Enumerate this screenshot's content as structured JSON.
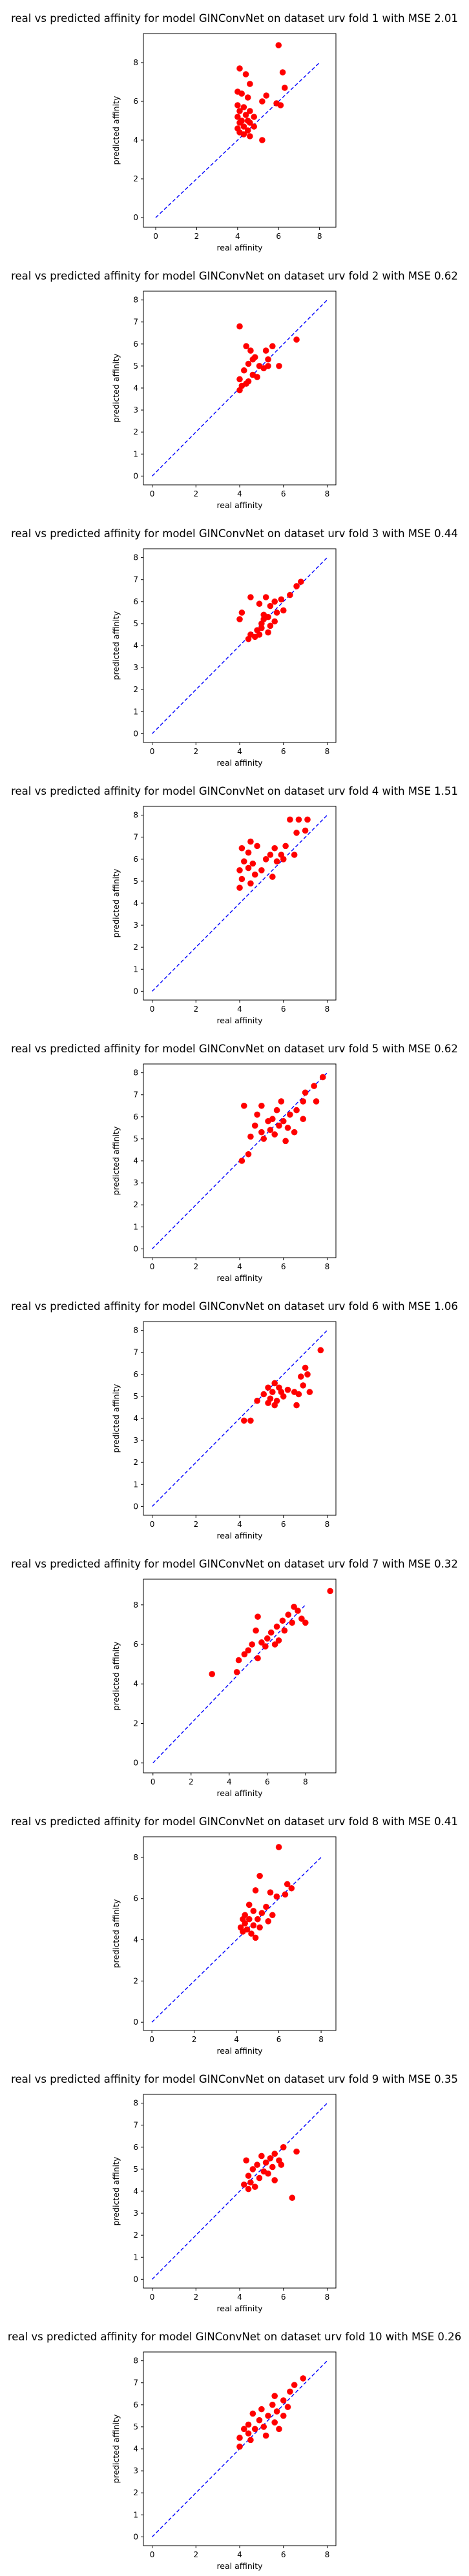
{
  "colors": {
    "points": "#ff0000",
    "diagonal": "#0000ff",
    "axes": "#000000",
    "background": "#ffffff"
  },
  "chart_data": [
    {
      "type": "scatter",
      "title": "real vs predicted affinity for model GINConvNet on dataset urv fold 1 with MSE 2.01",
      "xlabel": "real affinity",
      "ylabel": "predicted affinity",
      "xlim": [
        -0.6,
        8.8
      ],
      "ylim": [
        -0.5,
        9.5
      ],
      "xticks": [
        0,
        2,
        4,
        6,
        8
      ],
      "yticks": [
        0,
        2,
        4,
        6,
        8
      ],
      "diagonal": [
        0,
        8
      ],
      "points": [
        [
          6.0,
          8.9
        ],
        [
          4.1,
          7.7
        ],
        [
          6.2,
          7.5
        ],
        [
          4.4,
          7.4
        ],
        [
          4.6,
          6.9
        ],
        [
          6.3,
          6.7
        ],
        [
          4.0,
          6.5
        ],
        [
          4.2,
          6.4
        ],
        [
          5.4,
          6.3
        ],
        [
          4.5,
          6.2
        ],
        [
          5.2,
          6.0
        ],
        [
          5.9,
          5.9
        ],
        [
          4.0,
          5.8
        ],
        [
          4.3,
          5.7
        ],
        [
          4.6,
          5.5
        ],
        [
          4.1,
          5.5
        ],
        [
          4.4,
          5.3
        ],
        [
          4.0,
          5.2
        ],
        [
          4.8,
          5.2
        ],
        [
          4.2,
          5.0
        ],
        [
          4.5,
          5.0
        ],
        [
          4.1,
          4.9
        ],
        [
          4.6,
          4.9
        ],
        [
          4.3,
          4.7
        ],
        [
          4.0,
          4.6
        ],
        [
          4.8,
          4.7
        ],
        [
          4.5,
          4.5
        ],
        [
          4.1,
          4.4
        ],
        [
          4.3,
          4.3
        ],
        [
          4.6,
          4.2
        ],
        [
          5.2,
          4.0
        ],
        [
          6.1,
          5.8
        ]
      ]
    },
    {
      "type": "scatter",
      "title": "real vs predicted affinity for model GINConvNet on dataset urv fold 2 with MSE 0.62",
      "xlabel": "real affinity",
      "ylabel": "predicted affinity",
      "xlim": [
        -0.4,
        8.4
      ],
      "ylim": [
        -0.4,
        8.4
      ],
      "xticks": [
        0,
        2,
        4,
        6,
        8
      ],
      "yticks": [
        0,
        1,
        2,
        3,
        4,
        5,
        6,
        7,
        8
      ],
      "diagonal": [
        0,
        8
      ],
      "points": [
        [
          4.0,
          6.8
        ],
        [
          4.5,
          5.7
        ],
        [
          4.3,
          5.9
        ],
        [
          5.2,
          5.7
        ],
        [
          5.5,
          5.9
        ],
        [
          5.3,
          5.3
        ],
        [
          4.7,
          5.4
        ],
        [
          4.4,
          5.1
        ],
        [
          4.9,
          5.0
        ],
        [
          6.6,
          6.2
        ],
        [
          5.8,
          5.0
        ],
        [
          4.2,
          4.8
        ],
        [
          4.6,
          4.6
        ],
        [
          5.1,
          4.9
        ],
        [
          4.0,
          4.4
        ],
        [
          4.4,
          4.3
        ],
        [
          4.8,
          4.5
        ],
        [
          4.1,
          4.1
        ],
        [
          4.3,
          4.2
        ],
        [
          4.0,
          3.9
        ],
        [
          5.3,
          5.0
        ],
        [
          4.6,
          5.3
        ]
      ]
    },
    {
      "type": "scatter",
      "title": "real vs predicted affinity for model GINConvNet on dataset urv fold 3 with MSE 0.44",
      "xlabel": "real affinity",
      "ylabel": "predicted affinity",
      "xlim": [
        -0.4,
        8.4
      ],
      "ylim": [
        -0.4,
        8.4
      ],
      "xticks": [
        0,
        2,
        4,
        6,
        8
      ],
      "yticks": [
        0,
        1,
        2,
        3,
        4,
        5,
        6,
        7,
        8
      ],
      "diagonal": [
        0,
        8
      ],
      "points": [
        [
          6.8,
          6.9
        ],
        [
          6.6,
          6.7
        ],
        [
          4.5,
          6.2
        ],
        [
          5.2,
          6.2
        ],
        [
          5.6,
          6.0
        ],
        [
          5.9,
          6.1
        ],
        [
          6.3,
          6.3
        ],
        [
          4.9,
          5.9
        ],
        [
          5.4,
          5.8
        ],
        [
          4.1,
          5.5
        ],
        [
          5.7,
          5.5
        ],
        [
          6.0,
          5.6
        ],
        [
          4.0,
          5.2
        ],
        [
          5.1,
          5.4
        ],
        [
          5.3,
          5.3
        ],
        [
          5.6,
          5.1
        ],
        [
          5.0,
          5.0
        ],
        [
          5.4,
          4.9
        ],
        [
          4.8,
          4.7
        ],
        [
          5.3,
          4.6
        ],
        [
          4.5,
          4.5
        ],
        [
          4.9,
          4.5
        ],
        [
          4.4,
          4.3
        ],
        [
          4.7,
          4.4
        ],
        [
          5.1,
          5.2
        ],
        [
          5.0,
          4.8
        ]
      ]
    },
    {
      "type": "scatter",
      "title": "real vs predicted affinity for model GINConvNet on dataset urv fold 4 with MSE 1.51",
      "xlabel": "real affinity",
      "ylabel": "predicted affinity",
      "xlim": [
        -0.4,
        8.4
      ],
      "ylim": [
        -0.4,
        8.4
      ],
      "xticks": [
        0,
        2,
        4,
        6,
        8
      ],
      "yticks": [
        0,
        1,
        2,
        3,
        4,
        5,
        6,
        7,
        8
      ],
      "diagonal": [
        0,
        8
      ],
      "points": [
        [
          6.3,
          7.8
        ],
        [
          6.7,
          7.8
        ],
        [
          7.1,
          7.8
        ],
        [
          6.6,
          7.2
        ],
        [
          7.0,
          7.3
        ],
        [
          4.5,
          6.8
        ],
        [
          4.1,
          6.5
        ],
        [
          4.4,
          6.3
        ],
        [
          4.8,
          6.6
        ],
        [
          5.6,
          6.5
        ],
        [
          6.1,
          6.6
        ],
        [
          5.4,
          6.2
        ],
        [
          5.9,
          6.2
        ],
        [
          6.5,
          6.2
        ],
        [
          4.2,
          5.9
        ],
        [
          4.6,
          5.8
        ],
        [
          5.2,
          6.0
        ],
        [
          5.7,
          5.9
        ],
        [
          6.0,
          6.0
        ],
        [
          4.0,
          5.5
        ],
        [
          4.4,
          5.6
        ],
        [
          5.0,
          5.5
        ],
        [
          4.7,
          5.3
        ],
        [
          4.1,
          5.1
        ],
        [
          4.5,
          4.9
        ],
        [
          5.5,
          5.2
        ],
        [
          4.0,
          4.7
        ]
      ]
    },
    {
      "type": "scatter",
      "title": "real vs predicted affinity for model GINConvNet on dataset urv fold 5 with MSE 0.62",
      "xlabel": "real affinity",
      "ylabel": "predicted affinity",
      "xlim": [
        -0.4,
        8.4
      ],
      "ylim": [
        -0.4,
        8.4
      ],
      "xticks": [
        0,
        2,
        4,
        6,
        8
      ],
      "yticks": [
        0,
        1,
        2,
        3,
        4,
        5,
        6,
        7,
        8
      ],
      "diagonal": [
        0,
        8
      ],
      "points": [
        [
          7.8,
          7.8
        ],
        [
          7.4,
          7.4
        ],
        [
          7.0,
          7.1
        ],
        [
          6.9,
          6.7
        ],
        [
          7.5,
          6.7
        ],
        [
          5.9,
          6.7
        ],
        [
          4.2,
          6.5
        ],
        [
          5.0,
          6.5
        ],
        [
          6.6,
          6.3
        ],
        [
          5.7,
          6.3
        ],
        [
          4.8,
          6.1
        ],
        [
          6.3,
          6.1
        ],
        [
          5.5,
          5.9
        ],
        [
          6.0,
          5.8
        ],
        [
          5.3,
          5.8
        ],
        [
          6.9,
          5.9
        ],
        [
          4.7,
          5.6
        ],
        [
          5.8,
          5.6
        ],
        [
          6.2,
          5.5
        ],
        [
          5.4,
          5.4
        ],
        [
          5.0,
          5.3
        ],
        [
          6.5,
          5.3
        ],
        [
          4.5,
          5.1
        ],
        [
          5.6,
          5.2
        ],
        [
          5.1,
          5.0
        ],
        [
          6.1,
          4.9
        ],
        [
          4.4,
          4.3
        ],
        [
          4.1,
          4.0
        ]
      ]
    },
    {
      "type": "scatter",
      "title": "real vs predicted affinity for model GINConvNet on dataset urv fold 6 with MSE 1.06",
      "xlabel": "real affinity",
      "ylabel": "predicted affinity",
      "xlim": [
        -0.4,
        8.4
      ],
      "ylim": [
        -0.4,
        8.4
      ],
      "xticks": [
        0,
        2,
        4,
        6,
        8
      ],
      "yticks": [
        0,
        1,
        2,
        3,
        4,
        5,
        6,
        7,
        8
      ],
      "diagonal": [
        0,
        8
      ],
      "points": [
        [
          7.7,
          7.1
        ],
        [
          7.0,
          6.3
        ],
        [
          7.1,
          6.0
        ],
        [
          6.8,
          5.9
        ],
        [
          5.6,
          5.6
        ],
        [
          5.3,
          5.4
        ],
        [
          5.8,
          5.4
        ],
        [
          6.9,
          5.5
        ],
        [
          5.5,
          5.2
        ],
        [
          5.9,
          5.2
        ],
        [
          6.2,
          5.3
        ],
        [
          6.5,
          5.2
        ],
        [
          5.1,
          5.1
        ],
        [
          7.2,
          5.2
        ],
        [
          5.4,
          4.9
        ],
        [
          6.0,
          5.0
        ],
        [
          6.7,
          5.1
        ],
        [
          5.7,
          4.8
        ],
        [
          5.3,
          4.7
        ],
        [
          4.8,
          4.8
        ],
        [
          6.6,
          4.6
        ],
        [
          5.6,
          4.6
        ],
        [
          4.2,
          3.9
        ],
        [
          4.5,
          3.9
        ]
      ]
    },
    {
      "type": "scatter",
      "title": "real vs predicted affinity for model GINConvNet on dataset urv fold 7 with MSE 0.32",
      "xlabel": "real affinity",
      "ylabel": "predicted affinity",
      "xlim": [
        -0.5,
        9.6
      ],
      "ylim": [
        -0.5,
        9.3
      ],
      "xticks": [
        0,
        2,
        4,
        6,
        8
      ],
      "yticks": [
        0,
        2,
        4,
        6,
        8
      ],
      "diagonal": [
        0,
        8
      ],
      "points": [
        [
          9.3,
          8.7
        ],
        [
          7.4,
          7.9
        ],
        [
          7.6,
          7.7
        ],
        [
          7.1,
          7.5
        ],
        [
          7.8,
          7.3
        ],
        [
          5.5,
          7.4
        ],
        [
          6.8,
          7.2
        ],
        [
          7.3,
          7.1
        ],
        [
          8.0,
          7.1
        ],
        [
          6.5,
          6.9
        ],
        [
          6.9,
          6.7
        ],
        [
          6.2,
          6.6
        ],
        [
          6.0,
          6.3
        ],
        [
          5.7,
          6.1
        ],
        [
          6.4,
          6.0
        ],
        [
          5.2,
          6.0
        ],
        [
          5.9,
          5.9
        ],
        [
          5.0,
          5.7
        ],
        [
          4.8,
          5.5
        ],
        [
          5.5,
          5.3
        ],
        [
          4.5,
          5.2
        ],
        [
          4.4,
          4.6
        ],
        [
          3.1,
          4.5
        ],
        [
          5.4,
          6.7
        ],
        [
          6.6,
          6.2
        ]
      ]
    },
    {
      "type": "scatter",
      "title": "real vs predicted affinity for model GINConvNet on dataset urv fold 8 with MSE 0.41",
      "xlabel": "real affinity",
      "ylabel": "predicted affinity",
      "xlim": [
        -0.4,
        8.7
      ],
      "ylim": [
        -0.4,
        9.0
      ],
      "xticks": [
        0,
        2,
        4,
        6,
        8
      ],
      "yticks": [
        0,
        2,
        4,
        6,
        8
      ],
      "diagonal": [
        0,
        8
      ],
      "points": [
        [
          6.0,
          8.5
        ],
        [
          5.1,
          7.1
        ],
        [
          6.4,
          6.7
        ],
        [
          6.6,
          6.5
        ],
        [
          4.9,
          6.4
        ],
        [
          5.6,
          6.3
        ],
        [
          6.3,
          6.2
        ],
        [
          5.9,
          6.1
        ],
        [
          4.6,
          5.7
        ],
        [
          5.4,
          5.6
        ],
        [
          4.8,
          5.4
        ],
        [
          5.2,
          5.3
        ],
        [
          4.4,
          5.2
        ],
        [
          5.7,
          5.2
        ],
        [
          4.3,
          5.0
        ],
        [
          4.6,
          5.0
        ],
        [
          5.0,
          5.0
        ],
        [
          5.5,
          4.9
        ],
        [
          4.4,
          4.8
        ],
        [
          4.8,
          4.7
        ],
        [
          4.2,
          4.6
        ],
        [
          4.5,
          4.5
        ],
        [
          5.1,
          4.6
        ],
        [
          4.7,
          4.3
        ],
        [
          4.3,
          4.4
        ],
        [
          4.9,
          4.1
        ]
      ]
    },
    {
      "type": "scatter",
      "title": "real vs predicted affinity for model GINConvNet on dataset urv fold 9 with MSE 0.35",
      "xlabel": "real affinity",
      "ylabel": "predicted affinity",
      "xlim": [
        -0.4,
        8.4
      ],
      "ylim": [
        -0.4,
        8.4
      ],
      "xticks": [
        0,
        2,
        4,
        6,
        8
      ],
      "yticks": [
        0,
        1,
        2,
        3,
        4,
        5,
        6,
        7,
        8
      ],
      "diagonal": [
        0,
        8
      ],
      "points": [
        [
          6.0,
          6.0
        ],
        [
          6.6,
          5.8
        ],
        [
          5.6,
          5.7
        ],
        [
          5.0,
          5.6
        ],
        [
          5.4,
          5.5
        ],
        [
          4.3,
          5.4
        ],
        [
          5.2,
          5.3
        ],
        [
          5.8,
          5.4
        ],
        [
          4.8,
          5.2
        ],
        [
          5.5,
          5.1
        ],
        [
          5.9,
          5.2
        ],
        [
          4.6,
          5.0
        ],
        [
          5.1,
          4.9
        ],
        [
          5.3,
          4.8
        ],
        [
          4.4,
          4.7
        ],
        [
          4.9,
          4.6
        ],
        [
          5.6,
          4.5
        ],
        [
          4.5,
          4.4
        ],
        [
          4.2,
          4.3
        ],
        [
          4.7,
          4.2
        ],
        [
          4.4,
          4.1
        ],
        [
          6.4,
          3.7
        ]
      ]
    },
    {
      "type": "scatter",
      "title": "real vs predicted affinity for model GINConvNet on dataset urv fold 10 with MSE 0.26",
      "xlabel": "real affinity",
      "ylabel": "predicted affinity",
      "xlim": [
        -0.4,
        8.4
      ],
      "ylim": [
        -0.4,
        8.4
      ],
      "xticks": [
        0,
        2,
        4,
        6,
        8
      ],
      "yticks": [
        0,
        1,
        2,
        3,
        4,
        5,
        6,
        7,
        8
      ],
      "diagonal": [
        0,
        8
      ],
      "points": [
        [
          6.9,
          7.2
        ],
        [
          6.5,
          6.9
        ],
        [
          6.3,
          6.6
        ],
        [
          5.6,
          6.4
        ],
        [
          6.0,
          6.2
        ],
        [
          5.5,
          6.0
        ],
        [
          6.2,
          5.9
        ],
        [
          5.0,
          5.8
        ],
        [
          5.7,
          5.7
        ],
        [
          4.6,
          5.6
        ],
        [
          5.3,
          5.5
        ],
        [
          6.0,
          5.5
        ],
        [
          4.9,
          5.3
        ],
        [
          5.6,
          5.2
        ],
        [
          4.4,
          5.1
        ],
        [
          5.1,
          5.0
        ],
        [
          4.2,
          4.9
        ],
        [
          4.7,
          4.9
        ],
        [
          5.8,
          4.9
        ],
        [
          4.4,
          4.7
        ],
        [
          5.2,
          4.6
        ],
        [
          4.0,
          4.5
        ],
        [
          4.5,
          4.4
        ],
        [
          4.0,
          4.1
        ]
      ]
    }
  ]
}
